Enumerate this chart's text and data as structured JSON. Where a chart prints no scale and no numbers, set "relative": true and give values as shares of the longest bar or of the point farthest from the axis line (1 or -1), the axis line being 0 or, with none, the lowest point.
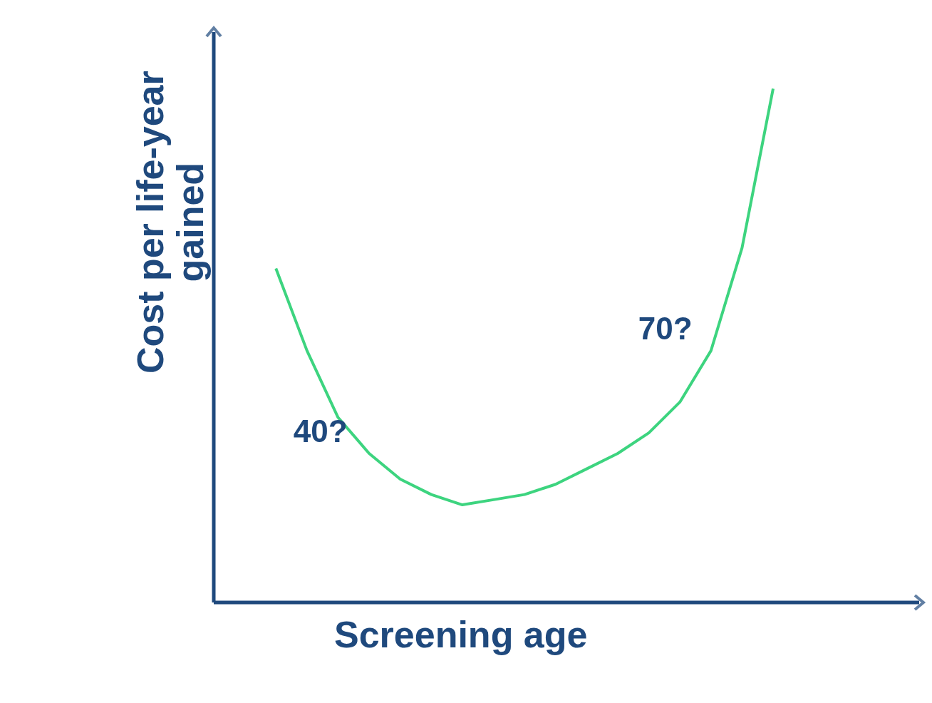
{
  "chart_data": {
    "type": "line",
    "relative": true,
    "xlabel": "Screening age",
    "ylabel": "Cost per life-year gained",
    "categories": [
      null,
      null,
      null,
      null,
      null,
      null,
      null,
      null,
      null,
      null,
      null,
      null,
      null,
      null,
      null,
      null,
      null
    ],
    "series": [
      {
        "color": "#3dd47f",
        "values": [
          0.65,
          0.49,
          0.36,
          0.29,
          0.24,
          0.21,
          0.19,
          0.2,
          0.21,
          0.23,
          0.26,
          0.29,
          0.33,
          0.39,
          0.49,
          0.69,
          1.0
        ]
      }
    ],
    "annotations": [
      "40?",
      "70?"
    ],
    "marker": "none",
    "line_style": "solid"
  }
}
